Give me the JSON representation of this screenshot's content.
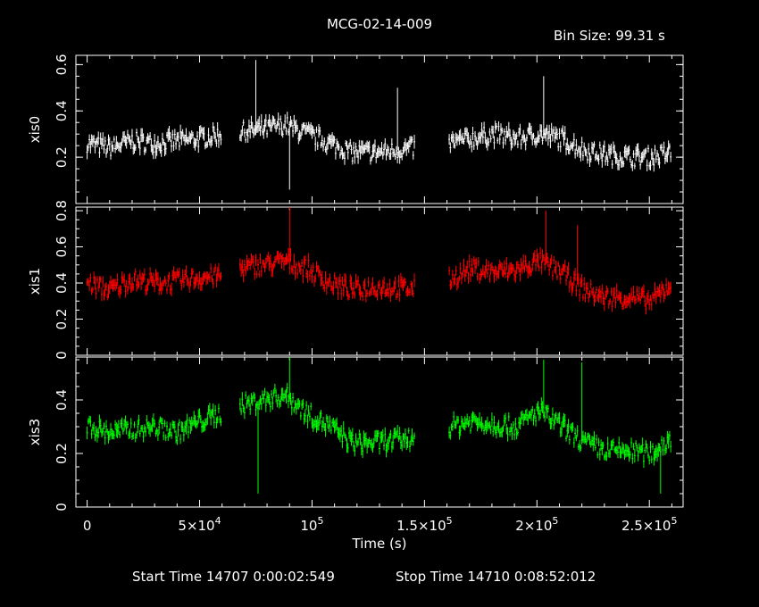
{
  "chart_data": {
    "type": "line",
    "title": "MCG-02-14-009",
    "bin_size": "Bin Size: 99.31 s",
    "xlabel": "Time (s)",
    "xlim": [
      -5000,
      265000
    ],
    "x_ticks": [
      {
        "v": 0,
        "m": "0",
        "e": ""
      },
      {
        "v": 50000,
        "m": "5×10",
        "e": "4"
      },
      {
        "v": 100000,
        "m": "10",
        "e": "5"
      },
      {
        "v": 150000,
        "m": "1.5×10",
        "e": "5"
      },
      {
        "v": 200000,
        "m": "2×10",
        "e": "5"
      },
      {
        "v": 250000,
        "m": "2.5×10",
        "e": "5"
      }
    ],
    "footer": {
      "start": "Start Time 14707  0:00:02:549",
      "stop": "Stop Time 14710  0:08:52:012"
    },
    "panels": [
      {
        "name": "xis0",
        "color": "#ffffff",
        "ylim": [
          0.0,
          0.64
        ],
        "yticks": [
          "0.2",
          "0.4",
          "0.6"
        ],
        "ytick_vals": [
          0.2,
          0.4,
          0.6
        ],
        "segments": [
          {
            "x": [
              0,
              10000,
              20000,
              30000,
              40000,
              50000,
              60000
            ],
            "y": [
              0.26,
              0.24,
              0.27,
              0.26,
              0.27,
              0.28,
              0.3
            ]
          },
          {
            "x": [
              68000,
              78000,
              88000,
              98000,
              108000,
              118000,
              128000,
              138000,
              146000
            ],
            "y": [
              0.31,
              0.32,
              0.34,
              0.3,
              0.26,
              0.22,
              0.22,
              0.23,
              0.24
            ]
          },
          {
            "x": [
              161000,
              171000,
              181000,
              191000,
              201000,
              211000,
              221000,
              231000,
              241000,
              251000,
              260000
            ],
            "y": [
              0.26,
              0.28,
              0.3,
              0.28,
              0.3,
              0.28,
              0.23,
              0.21,
              0.2,
              0.2,
              0.22
            ]
          }
        ],
        "spikes": [
          {
            "x": 75000,
            "y": 0.62
          },
          {
            "x": 138000,
            "y": 0.5
          },
          {
            "x": 203000,
            "y": 0.55
          },
          {
            "x": 90000,
            "y": 0.06
          }
        ]
      },
      {
        "name": "xis1",
        "color": "#ff0000",
        "ylim": [
          0.0,
          0.82
        ],
        "yticks": [
          "0",
          "0.2",
          "0.4",
          "0.6",
          "0.8"
        ],
        "ytick_vals": [
          0,
          0.2,
          0.4,
          0.6,
          0.8
        ],
        "segments": [
          {
            "x": [
              0,
              10000,
              20000,
              30000,
              40000,
              50000,
              60000
            ],
            "y": [
              0.4,
              0.36,
              0.42,
              0.4,
              0.41,
              0.43,
              0.44
            ]
          },
          {
            "x": [
              68000,
              78000,
              88000,
              98000,
              108000,
              118000,
              128000,
              138000,
              146000
            ],
            "y": [
              0.48,
              0.5,
              0.52,
              0.48,
              0.4,
              0.36,
              0.38,
              0.37,
              0.37
            ]
          },
          {
            "x": [
              161000,
              171000,
              181000,
              191000,
              201000,
              211000,
              221000,
              231000,
              241000,
              251000,
              260000
            ],
            "y": [
              0.42,
              0.48,
              0.46,
              0.47,
              0.52,
              0.46,
              0.36,
              0.32,
              0.32,
              0.3,
              0.4
            ]
          }
        ],
        "spikes": [
          {
            "x": 90000,
            "y": 0.82
          },
          {
            "x": 204000,
            "y": 0.8
          },
          {
            "x": 218000,
            "y": 0.72
          }
        ]
      },
      {
        "name": "xis3",
        "color": "#00ff00",
        "ylim": [
          0.0,
          0.56
        ],
        "yticks": [
          "0",
          "0.2",
          "0.4"
        ],
        "ytick_vals": [
          0,
          0.2,
          0.4
        ],
        "segments": [
          {
            "x": [
              0,
              10000,
              20000,
              30000,
              40000,
              50000,
              60000
            ],
            "y": [
              0.3,
              0.28,
              0.29,
              0.3,
              0.28,
              0.32,
              0.35
            ]
          },
          {
            "x": [
              68000,
              78000,
              88000,
              98000,
              108000,
              118000,
              128000,
              138000,
              146000
            ],
            "y": [
              0.38,
              0.4,
              0.42,
              0.35,
              0.3,
              0.24,
              0.24,
              0.25,
              0.26
            ]
          },
          {
            "x": [
              161000,
              171000,
              181000,
              191000,
              201000,
              211000,
              221000,
              231000,
              241000,
              251000,
              260000
            ],
            "y": [
              0.3,
              0.32,
              0.31,
              0.3,
              0.36,
              0.3,
              0.24,
              0.21,
              0.21,
              0.2,
              0.26
            ]
          }
        ],
        "spikes": [
          {
            "x": 90000,
            "y": 0.56
          },
          {
            "x": 203000,
            "y": 0.55
          },
          {
            "x": 220000,
            "y": 0.54
          },
          {
            "x": 76000,
            "y": 0.05
          },
          {
            "x": 255000,
            "y": 0.05
          }
        ]
      }
    ]
  }
}
